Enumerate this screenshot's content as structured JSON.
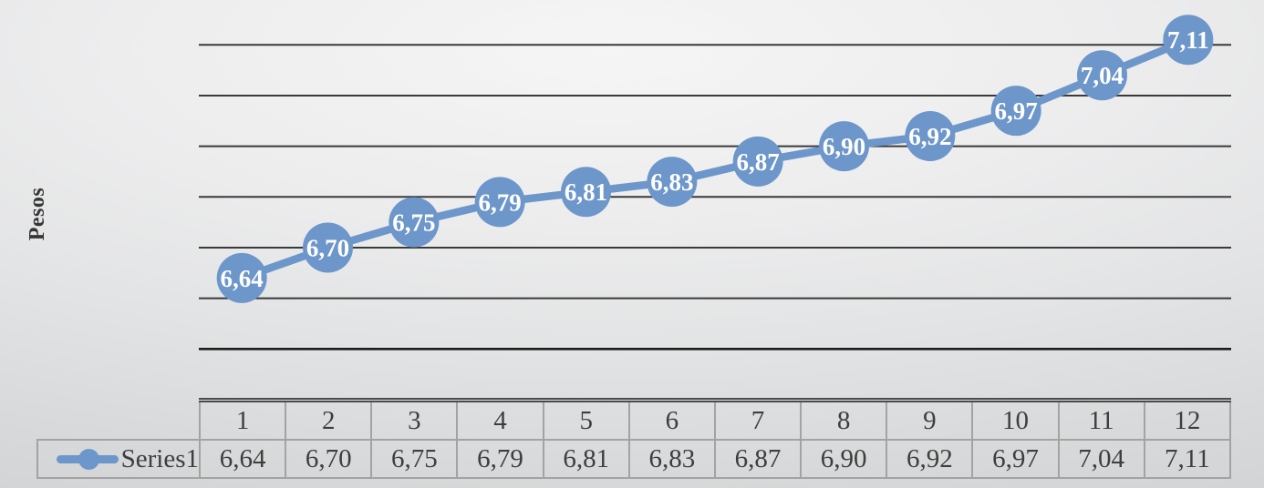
{
  "colors": {
    "accent": "#6d96ca",
    "gridline": "#3a3a3a",
    "bottom_gridline": "#1c1c1c",
    "marker_label": "#ffffff",
    "table_border": "#a3a3a3",
    "text": "#3e3e3e"
  },
  "chart_data": {
    "type": "line",
    "title": "",
    "xlabel": "",
    "ylabel": "Pesos",
    "categories": [
      "1",
      "2",
      "3",
      "4",
      "5",
      "6",
      "7",
      "8",
      "9",
      "10",
      "11",
      "12"
    ],
    "series": [
      {
        "name": "Series1",
        "values": [
          6.64,
          6.7,
          6.75,
          6.79,
          6.81,
          6.83,
          6.87,
          6.9,
          6.92,
          6.97,
          7.04,
          7.11
        ],
        "labels": [
          "6,64",
          "6,70",
          "6,75",
          "6,79",
          "6,81",
          "6,83",
          "6,87",
          "6,90",
          "6,92",
          "6,97",
          "7,04",
          "7,11"
        ]
      }
    ],
    "ylim": [
      6.5,
      7.1
    ],
    "gridline_step": 0.1,
    "grid": true,
    "y_tick_labels_visible": false,
    "data_labels": "inside-marker",
    "legend_position": "table-left"
  }
}
